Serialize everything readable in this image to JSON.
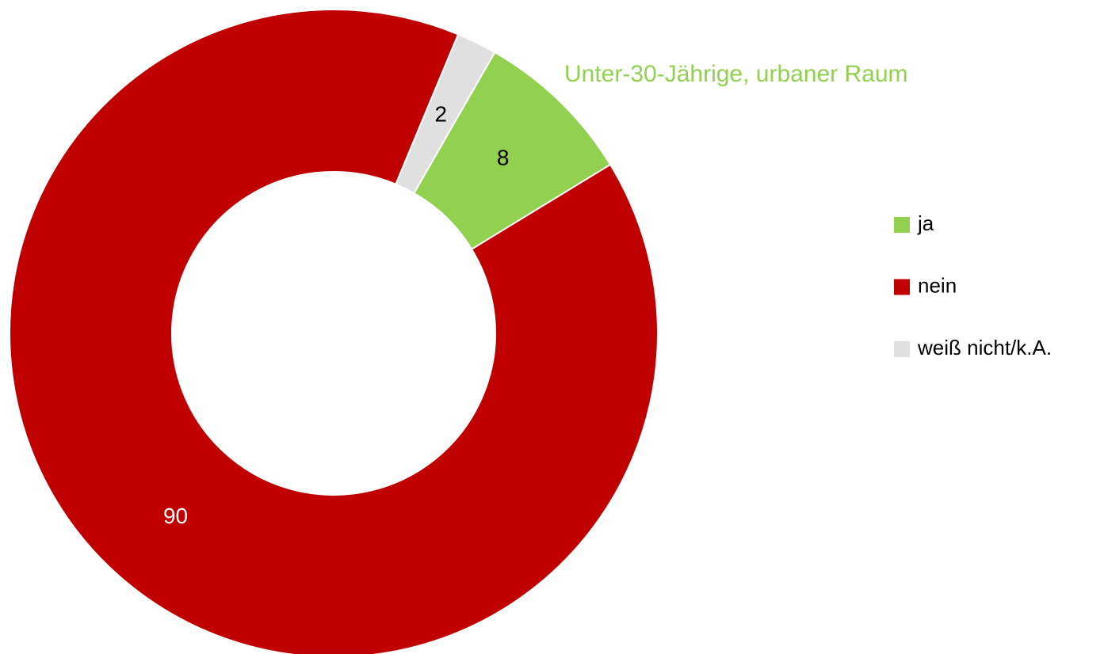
{
  "chart_data": {
    "type": "donut",
    "title": "Unter-30-Jährige, urbaner Raum",
    "title_color": "#92d050",
    "categories": [
      "ja",
      "nein",
      "weiß nicht/k.A."
    ],
    "values": [
      8,
      90,
      2
    ],
    "colors": [
      "#92d050",
      "#c00000",
      "#e0e0e0"
    ],
    "label_colors": [
      "#000000",
      "#ffffff",
      "#000000"
    ],
    "legend": "right"
  }
}
